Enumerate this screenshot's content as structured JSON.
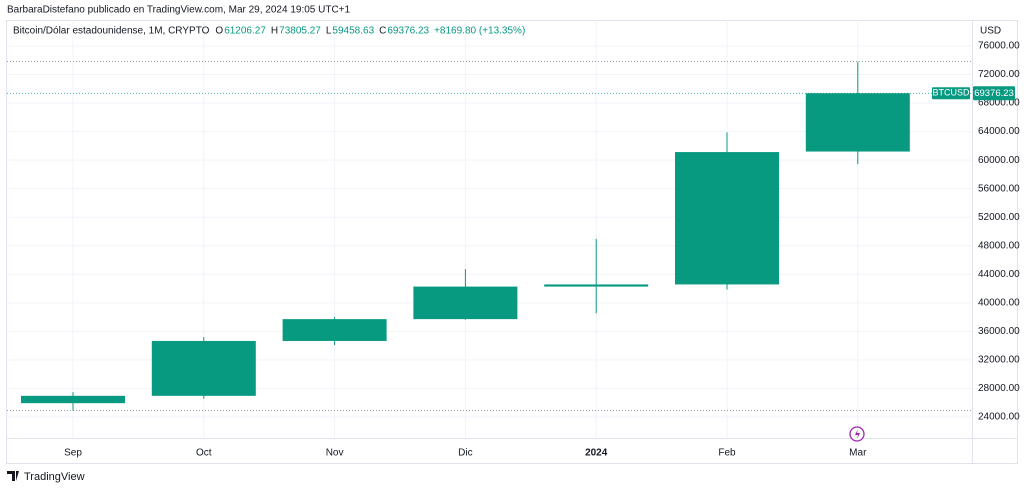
{
  "header": {
    "text": "BarbaraDistefano publicado en TradingView.com, Mar 29, 2024 19:05 UTC+1"
  },
  "chart_data": {
    "type": "candlestick",
    "title": "Bitcoin/Dólar estadounidense, 1M, CRYPTO",
    "ohlc_labels": [
      "O",
      "H",
      "L",
      "C"
    ],
    "change": "+8169.80 (+13.35%)",
    "y_axis_label": "USD",
    "price_label": "BTCUSD",
    "categories": [
      "Sep",
      "Oct",
      "Nov",
      "Dic",
      "2024",
      "Feb",
      "Mar"
    ],
    "series": [
      {
        "name": "BTCUSD",
        "color": "#089981",
        "open": [
          25940,
          26970,
          34660,
          37720,
          42280,
          42580,
          61206.27
        ],
        "high": [
          27490,
          35200,
          38000,
          44730,
          48970,
          63900,
          73805.27
        ],
        "low": [
          24900,
          26550,
          34100,
          37630,
          38550,
          41880,
          59458.63
        ],
        "close": [
          26970,
          34660,
          37720,
          42280,
          42580,
          61130,
          69376.23
        ]
      }
    ],
    "ylim": [
      21060,
      79640
    ],
    "yticks": [
      {
        "value": 24000,
        "label": "24000.00"
      },
      {
        "value": 28000,
        "label": "28000.00"
      },
      {
        "value": 32000,
        "label": "32000.00"
      },
      {
        "value": 36000,
        "label": "36000.00"
      },
      {
        "value": 40000,
        "label": "40000.00"
      },
      {
        "value": 44000,
        "label": "44000.00"
      },
      {
        "value": 48000,
        "label": "48000.00"
      },
      {
        "value": 52000,
        "label": "52000.00"
      },
      {
        "value": 56000,
        "label": "56000.00"
      },
      {
        "value": 60000,
        "label": "60000.00"
      },
      {
        "value": 64000,
        "label": "64000.00"
      },
      {
        "value": 68000,
        "label": "68000.00"
      },
      {
        "value": 72000,
        "label": "72000.00"
      },
      {
        "value": 76000,
        "label": "76000.00"
      }
    ],
    "grid": true
  },
  "footer": {
    "logo": "TradingView"
  }
}
